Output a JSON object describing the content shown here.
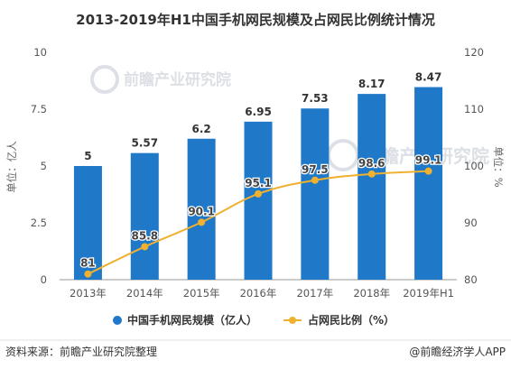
{
  "chart_data": {
    "type": "bar+line",
    "title": "2013-2019年H1中国手机网民规模及占网民比例统计情况",
    "categories": [
      "2013年",
      "2014年",
      "2015年",
      "2016年",
      "2017年",
      "2018年",
      "2019年H1"
    ],
    "series": [
      {
        "name": "中国手机网民规模（亿人）",
        "type": "bar",
        "axis": "left",
        "color": "#1f78c8",
        "values": [
          5,
          5.57,
          6.2,
          6.95,
          7.53,
          8.17,
          8.47
        ],
        "labels": [
          "5",
          "5.57",
          "6.2",
          "6.95",
          "7.53",
          "8.17",
          "8.47"
        ]
      },
      {
        "name": "占网民比例（%）",
        "type": "line",
        "axis": "right",
        "color": "#f0b030",
        "values": [
          81,
          85.8,
          90.1,
          95.1,
          97.5,
          98.6,
          99.1
        ],
        "labels": [
          "81",
          "85.8",
          "90.1",
          "95.1",
          "97.5",
          "98.6",
          "99.1"
        ]
      }
    ],
    "y_left": {
      "label": "单位：亿人",
      "range": [
        0,
        10
      ],
      "ticks": [
        "0",
        "2.5",
        "5",
        "7.5",
        "10"
      ]
    },
    "y_right": {
      "label": "单位：%",
      "range": [
        80,
        120
      ],
      "ticks": [
        "80",
        "90",
        "100",
        "110",
        "120"
      ]
    },
    "grid": false,
    "legend_position": "bottom"
  },
  "footer": {
    "source": "资料来源：前瞻产业研究院整理",
    "brand": "@前瞻经济学人APP"
  },
  "watermark": {
    "text": "前瞻产业研究院"
  },
  "colors": {
    "bar": "#1f78c8",
    "line": "#f0b030"
  }
}
